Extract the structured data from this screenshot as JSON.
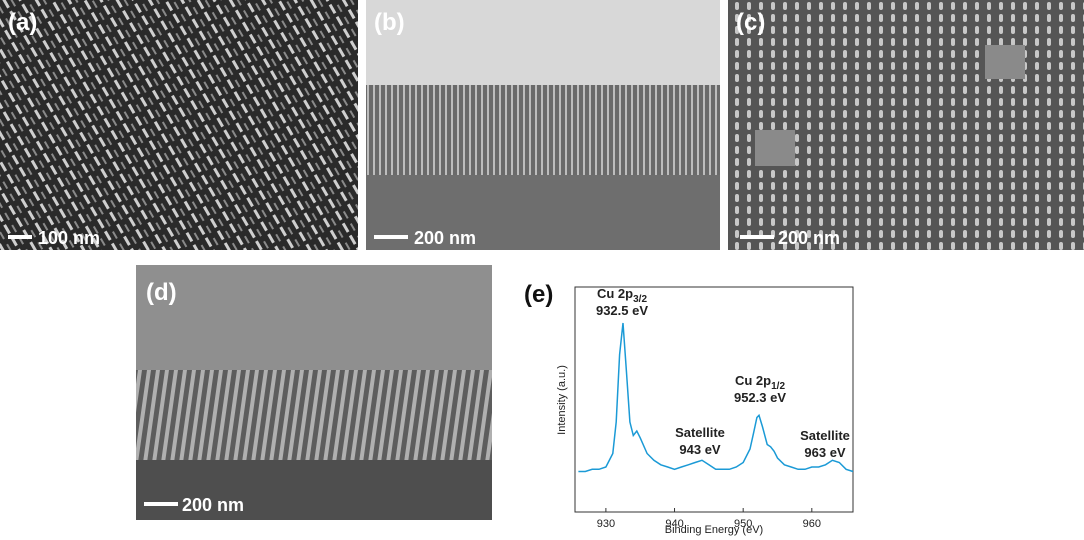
{
  "panels": [
    {
      "label": "(a)",
      "scale": "100 nm"
    },
    {
      "label": "(b)",
      "scale": "200 nm"
    },
    {
      "label": "(c)",
      "scale": "200 nm"
    },
    {
      "label": "(d)",
      "scale": "200 nm"
    }
  ],
  "chart_data": {
    "type": "line",
    "panel_label": "(e)",
    "xlabel": "Binding Energy (eV)",
    "ylabel": "Intensity (a.u.)",
    "x": [
      926,
      927,
      928,
      929,
      930,
      931,
      931.5,
      932,
      932.5,
      933,
      933.5,
      934,
      934.5,
      935,
      936,
      937,
      938,
      939,
      940,
      941,
      942,
      943,
      944,
      945,
      946,
      947,
      948,
      949,
      950,
      951,
      951.5,
      952,
      952.3,
      952.8,
      953.5,
      954,
      954.5,
      955,
      956,
      957,
      958,
      959,
      960,
      961,
      962,
      963,
      964,
      965,
      966
    ],
    "values": [
      18,
      18,
      19,
      19,
      20,
      26,
      40,
      70,
      84,
      62,
      40,
      34,
      36,
      33,
      26,
      23,
      21,
      20,
      19,
      20,
      21,
      22,
      23,
      21,
      19,
      19,
      19,
      20,
      22,
      28,
      35,
      42,
      43,
      38,
      30,
      29,
      27,
      24,
      21,
      20,
      19,
      19,
      20,
      20,
      21,
      23,
      22,
      19,
      18
    ],
    "color": "#1b9ad6",
    "xlim": [
      925.5,
      966
    ],
    "ylim": [
      0,
      100
    ],
    "xticks": [
      930,
      940,
      950,
      960
    ],
    "annotations": [
      {
        "text": "Cu 2p",
        "sub": "3/2",
        "value": "932.5 eV"
      },
      {
        "text": "Satellite",
        "value": "943 eV"
      },
      {
        "text": "Cu 2p",
        "sub": "1/2",
        "value": "952.3 eV"
      },
      {
        "text": "Satellite",
        "value": "963 eV"
      }
    ]
  }
}
